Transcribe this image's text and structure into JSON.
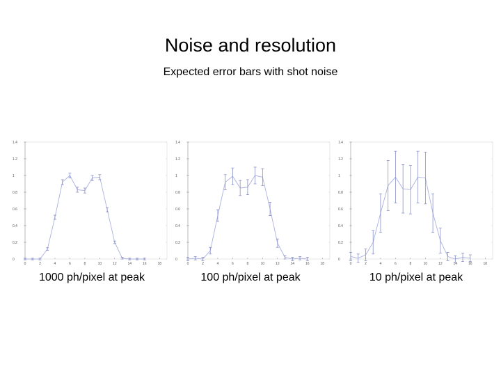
{
  "slide": {
    "title": "Noise and resolution",
    "subtitle": "Expected error bars with shot noise"
  },
  "chart_data": [
    {
      "type": "line",
      "title": "1000 ph/pixel at peak",
      "x": [
        0,
        1,
        2,
        3,
        4,
        5,
        6,
        7,
        8,
        9,
        10,
        11,
        12,
        13,
        14,
        15,
        16
      ],
      "y": [
        0,
        0,
        0,
        0.12,
        0.5,
        0.92,
        1.0,
        0.83,
        0.82,
        0.97,
        0.98,
        0.59,
        0.2,
        0.01,
        0,
        0,
        0
      ],
      "err": [
        0.01,
        0.01,
        0.01,
        0.015,
        0.025,
        0.03,
        0.03,
        0.03,
        0.03,
        0.03,
        0.03,
        0.025,
        0.015,
        0.01,
        0.01,
        0.01,
        0.01
      ],
      "xlim": [
        0,
        19
      ],
      "ylim": [
        0,
        1.4
      ],
      "xticks": [
        0,
        2,
        4,
        6,
        8,
        10,
        12,
        14,
        16,
        18
      ],
      "yticks": [
        0,
        0.2,
        0.4,
        0.6,
        0.8,
        1,
        1.2,
        1.4
      ],
      "line_color": "#aab0e0",
      "error_color": "#8890c8"
    },
    {
      "type": "line",
      "title": "100 ph/pixel at peak",
      "x": [
        0,
        1,
        2,
        3,
        4,
        5,
        6,
        7,
        8,
        9,
        10,
        11,
        12,
        13,
        14,
        15,
        16
      ],
      "y": [
        0,
        0.01,
        0,
        0.1,
        0.52,
        0.92,
        0.99,
        0.85,
        0.86,
        1.0,
        0.98,
        0.6,
        0.19,
        0.02,
        0,
        0.01,
        0
      ],
      "err": [
        0.02,
        0.02,
        0.02,
        0.04,
        0.07,
        0.09,
        0.1,
        0.09,
        0.09,
        0.1,
        0.1,
        0.08,
        0.05,
        0.02,
        0.02,
        0.02,
        0.02
      ],
      "xlim": [
        0,
        19
      ],
      "ylim": [
        0,
        1.4
      ],
      "xticks": [
        0,
        2,
        4,
        6,
        8,
        10,
        12,
        14,
        16,
        18
      ],
      "yticks": [
        0,
        0.2,
        0.4,
        0.6,
        0.8,
        1,
        1.2,
        1.4
      ],
      "line_color": "#aab0e0",
      "error_color": "#8890c8"
    },
    {
      "type": "line",
      "title": "10 ph/pixel at peak",
      "x": [
        0,
        1,
        2,
        3,
        4,
        5,
        6,
        7,
        8,
        9,
        10,
        11,
        12,
        13,
        14,
        15,
        16
      ],
      "y": [
        0.03,
        0.01,
        0.05,
        0.2,
        0.55,
        0.88,
        0.98,
        0.84,
        0.83,
        0.98,
        0.97,
        0.55,
        0.22,
        0.03,
        0,
        0.02,
        0.01
      ],
      "err": [
        0.05,
        0.05,
        0.07,
        0.14,
        0.23,
        0.3,
        0.31,
        0.29,
        0.29,
        0.31,
        0.31,
        0.23,
        0.15,
        0.05,
        0.04,
        0.05,
        0.04
      ],
      "xlim": [
        0,
        19
      ],
      "ylim": [
        0,
        1.4
      ],
      "xticks": [
        0,
        2,
        4,
        6,
        8,
        10,
        12,
        14,
        16,
        18
      ],
      "yticks": [
        0,
        0.2,
        0.4,
        0.6,
        0.8,
        1,
        1.2,
        1.4
      ],
      "line_color": "#aab0e0",
      "error_color": "#8890c8"
    }
  ]
}
